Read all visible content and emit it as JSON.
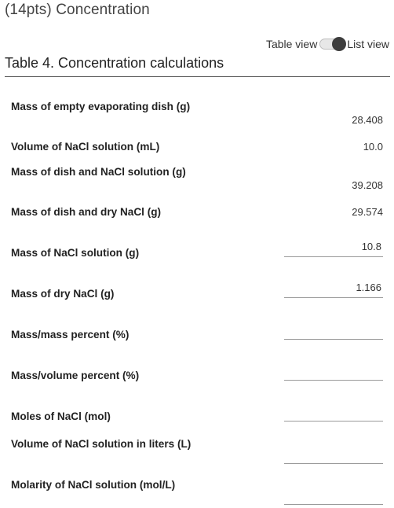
{
  "section": {
    "title": "(14pts) Concentration"
  },
  "view_toggle": {
    "table_label": "Table view",
    "list_label": "List view",
    "selected": "List view"
  },
  "table": {
    "caption": "Table 4. Concentration calculations",
    "rows": [
      {
        "label": "Mass of empty evaporating dish (g)",
        "value": "28.408"
      },
      {
        "label": "Volume of NaCl solution (mL)",
        "value": "10.0"
      },
      {
        "label": "Mass of dish and NaCl solution (g)",
        "value": "39.208"
      },
      {
        "label": "Mass of dish and dry NaCl (g)",
        "value": "29.574"
      },
      {
        "label": "Mass of NaCl solution (g)",
        "value": "10.8"
      },
      {
        "label": "Mass of dry NaCl (g)",
        "value": "1.166"
      },
      {
        "label": "Mass/mass percent (%)",
        "value": ""
      },
      {
        "label": "Mass/volume percent (%)",
        "value": ""
      },
      {
        "label": "Moles of NaCl (mol)",
        "value": ""
      },
      {
        "label": "Volume of NaCl solution in liters (L)",
        "value": ""
      },
      {
        "label": "Molarity of NaCl solution (mol/L)",
        "value": ""
      }
    ]
  }
}
